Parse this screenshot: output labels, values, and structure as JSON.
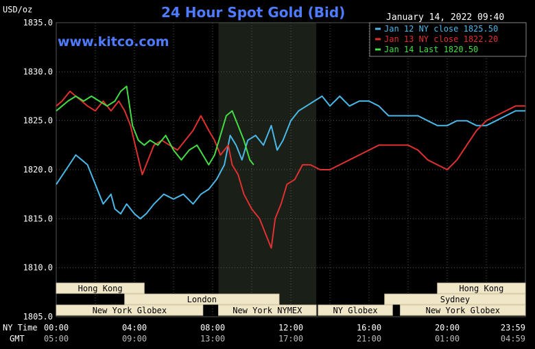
{
  "colors": {
    "background": "#000000",
    "grid": "#555555",
    "axis_text": "#ffffff",
    "title": "#4f7bff",
    "nymex_shade": "#1a2018",
    "session_box_fill": "#f0e6c8",
    "session_box_text": "#000000",
    "session_box_border": "#d8cca8"
  },
  "header": {
    "units": "USD/oz",
    "title": "24 Hour Spot Gold (Bid)",
    "date": "January 14, 2022 09:40",
    "watermark": "www.kitco.com"
  },
  "axis_rows": {
    "ny_label": "NY Time",
    "gmt_label": "GMT"
  },
  "chart_data": {
    "type": "line",
    "title": "24 Hour Spot Gold (Bid)",
    "ylabel": "USD/oz",
    "ylim": [
      1805.0,
      1835.0
    ],
    "xlim": [
      0,
      24
    ],
    "grid": true,
    "legend_position": "top-right",
    "y_ticks": [
      "1805.0",
      "1810.0",
      "1815.0",
      "1820.0",
      "1825.0",
      "1830.0",
      "1835.0"
    ],
    "x_ticks_ny": [
      "00:00",
      "04:00",
      "08:00",
      "12:00",
      "16:00",
      "20:00",
      "23:59"
    ],
    "x_ticks_gmt": [
      "05:00",
      "09:00",
      "13:00",
      "17:00",
      "21:00",
      "01:00",
      "04:59"
    ],
    "shaded_session": {
      "label": "New York NYMEX",
      "start_hour": 8.3,
      "end_hour": 13.3
    },
    "sessions": [
      {
        "label": "Hong Kong",
        "row": 0,
        "start": 0,
        "end": 4.5
      },
      {
        "label": "Hong Kong",
        "row": 0,
        "start": 19.5,
        "end": 24
      },
      {
        "label": "London",
        "row": 1,
        "start": 3.5,
        "end": 11.4
      },
      {
        "label": "Sydney",
        "row": 1,
        "start": 16.8,
        "end": 24
      },
      {
        "label": "New York Globex",
        "row": 2,
        "start": 0,
        "end": 7.5
      },
      {
        "label": "New York NYMEX",
        "row": 2,
        "start": 8.3,
        "end": 13.3
      },
      {
        "label": "NY Globex",
        "row": 2,
        "start": 13.4,
        "end": 17.2
      },
      {
        "label": "New York Globex",
        "row": 2,
        "start": 17.6,
        "end": 24
      }
    ],
    "series": [
      {
        "name": "Jan 12 NY close 1825.50",
        "color": "#4ab8e8",
        "x": [
          0,
          0.5,
          1,
          1.3,
          1.6,
          2,
          2.4,
          2.8,
          3.0,
          3.3,
          3.6,
          4.0,
          4.3,
          4.6,
          5.0,
          5.5,
          6.0,
          6.5,
          7.0,
          7.4,
          7.8,
          8.2,
          8.6,
          8.9,
          9.2,
          9.5,
          9.8,
          10.2,
          10.6,
          11.0,
          11.3,
          11.6,
          12.0,
          12.4,
          12.8,
          13.2,
          13.6,
          14.0,
          14.5,
          15.0,
          15.5,
          16.0,
          16.5,
          17.0,
          17.5,
          18.0,
          18.5,
          19.0,
          19.5,
          20.0,
          20.5,
          21.0,
          21.5,
          22.0,
          22.5,
          23.0,
          23.5,
          24.0
        ],
        "y": [
          1818.5,
          1820.0,
          1821.5,
          1821.0,
          1820.5,
          1818.5,
          1816.5,
          1817.5,
          1816.0,
          1815.5,
          1816.5,
          1815.5,
          1815.0,
          1815.5,
          1816.5,
          1817.5,
          1817.0,
          1817.5,
          1816.5,
          1817.5,
          1818.0,
          1819.0,
          1820.5,
          1823.5,
          1822.5,
          1821.0,
          1823.0,
          1823.5,
          1822.5,
          1824.5,
          1822.0,
          1823.0,
          1825.0,
          1826.0,
          1826.5,
          1827.0,
          1827.5,
          1826.5,
          1827.5,
          1826.5,
          1827.0,
          1827.0,
          1826.5,
          1825.5,
          1825.5,
          1825.5,
          1825.5,
          1825.0,
          1824.5,
          1824.5,
          1825.0,
          1825.0,
          1824.5,
          1824.5,
          1825.0,
          1825.5,
          1826.0,
          1826.0
        ]
      },
      {
        "name": "Jan 13 NY close 1822.20",
        "color": "#e03030",
        "x": [
          0,
          0.3,
          0.7,
          1.0,
          1.3,
          1.6,
          2.0,
          2.4,
          2.8,
          3.2,
          3.5,
          3.8,
          4.1,
          4.4,
          4.7,
          5.0,
          5.4,
          5.8,
          6.2,
          6.6,
          7.0,
          7.4,
          7.8,
          8.1,
          8.4,
          8.8,
          9.0,
          9.3,
          9.6,
          10.0,
          10.4,
          10.8,
          11.0,
          11.2,
          11.5,
          11.8,
          12.2,
          12.6,
          13.0,
          13.5,
          14.0,
          14.5,
          15.0,
          15.5,
          16.0,
          16.5,
          17.0,
          17.5,
          18.0,
          18.5,
          19.0,
          19.5,
          20.0,
          20.5,
          21.0,
          21.5,
          22.0,
          22.5,
          23.0,
          23.5,
          24.0
        ],
        "y": [
          1826.5,
          1827.0,
          1828.0,
          1827.5,
          1827.0,
          1826.5,
          1826.0,
          1827.0,
          1826.0,
          1827.0,
          1826.0,
          1824.5,
          1822.0,
          1819.5,
          1821.0,
          1822.5,
          1823.0,
          1822.5,
          1822.0,
          1823.0,
          1824.0,
          1825.5,
          1824.0,
          1823.0,
          1821.5,
          1822.5,
          1820.5,
          1819.5,
          1817.5,
          1816.0,
          1815.0,
          1813.0,
          1812.0,
          1815.0,
          1816.5,
          1818.5,
          1819.0,
          1820.5,
          1820.5,
          1820.0,
          1820.0,
          1820.5,
          1821.0,
          1821.5,
          1822.0,
          1822.5,
          1822.5,
          1822.5,
          1822.5,
          1822.0,
          1821.0,
          1820.5,
          1820.0,
          1821.0,
          1822.5,
          1824.0,
          1825.0,
          1825.5,
          1826.0,
          1826.5,
          1826.5
        ]
      },
      {
        "name": "Jan 14 Last 1820.50",
        "color": "#44dd44",
        "x": [
          0,
          0.3,
          0.6,
          1.0,
          1.4,
          1.8,
          2.2,
          2.6,
          3.0,
          3.3,
          3.6,
          3.9,
          4.2,
          4.5,
          4.8,
          5.2,
          5.6,
          6.0,
          6.4,
          6.8,
          7.2,
          7.5,
          7.8,
          8.1,
          8.4,
          8.7,
          9.0,
          9.3,
          9.6,
          9.9,
          10.1
        ],
        "y": [
          1826.0,
          1826.5,
          1827.0,
          1827.5,
          1827.0,
          1827.5,
          1827.0,
          1826.5,
          1827.0,
          1828.0,
          1828.5,
          1824.5,
          1823.0,
          1822.5,
          1823.0,
          1822.5,
          1823.5,
          1822.0,
          1821.0,
          1822.0,
          1822.5,
          1821.5,
          1820.5,
          1821.5,
          1823.5,
          1825.5,
          1826.0,
          1824.5,
          1823.0,
          1821.0,
          1820.5
        ]
      }
    ]
  }
}
